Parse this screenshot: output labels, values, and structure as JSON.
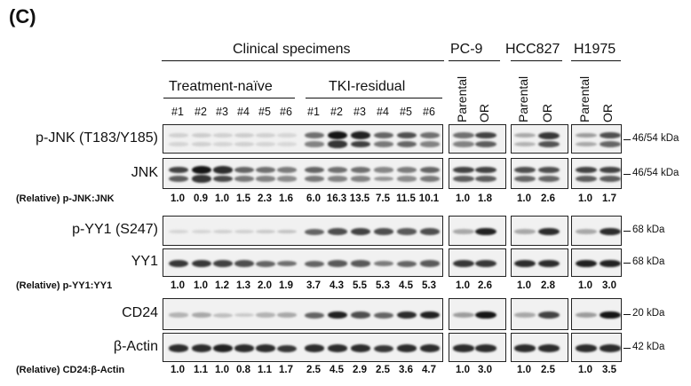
{
  "figure": {
    "panel_label": "(C)"
  },
  "headers": {
    "clinical": "Clinical specimens",
    "treatment_naive": "Treatment-naïve",
    "tki_residual": "TKI-residual",
    "cell_lines": [
      {
        "name": "PC-9",
        "lanes": [
          "Parental",
          "OR"
        ]
      },
      {
        "name": "HCC827",
        "lanes": [
          "Parental",
          "OR"
        ]
      },
      {
        "name": "H1975",
        "lanes": [
          "Parental",
          "OR"
        ]
      }
    ],
    "lane_numbers": [
      "#1",
      "#2",
      "#3",
      "#4",
      "#5",
      "#6",
      "#1",
      "#2",
      "#3",
      "#4",
      "#5",
      "#6"
    ]
  },
  "blots": [
    {
      "label": "p-JNK (T183/Y185)",
      "size": "46/54 kDa",
      "clinical": [
        0.12,
        0.14,
        0.12,
        0.14,
        0.12,
        0.1,
        0.55,
        0.95,
        0.9,
        0.6,
        0.7,
        0.55
      ],
      "cells": [
        0.55,
        0.75,
        0.3,
        0.8,
        0.35,
        0.7
      ]
    },
    {
      "label": "JNK",
      "size": "46/54 kDa",
      "clinical": [
        0.75,
        0.95,
        0.85,
        0.6,
        0.55,
        0.5,
        0.6,
        0.55,
        0.55,
        0.45,
        0.5,
        0.6
      ],
      "cells": [
        0.75,
        0.75,
        0.7,
        0.7,
        0.75,
        0.75
      ]
    },
    {
      "label": "p-YY1 (S247)",
      "size": "68 kDa",
      "clinical": [
        0.1,
        0.1,
        0.12,
        0.12,
        0.15,
        0.18,
        0.6,
        0.7,
        0.75,
        0.7,
        0.65,
        0.7
      ],
      "cells": [
        0.3,
        0.9,
        0.3,
        0.85,
        0.3,
        0.85
      ]
    },
    {
      "label": "YY1",
      "size": "68 kDa",
      "clinical": [
        0.8,
        0.8,
        0.75,
        0.7,
        0.6,
        0.55,
        0.6,
        0.65,
        0.65,
        0.5,
        0.6,
        0.65
      ],
      "cells": [
        0.8,
        0.8,
        0.85,
        0.85,
        0.9,
        0.9
      ]
    },
    {
      "label": "CD24",
      "size": "20 kDa",
      "clinical": [
        0.25,
        0.3,
        0.2,
        0.15,
        0.25,
        0.3,
        0.6,
        0.9,
        0.7,
        0.6,
        0.85,
        0.9
      ],
      "cells": [
        0.35,
        0.95,
        0.3,
        0.75,
        0.35,
        0.95
      ]
    },
    {
      "label": "β-Actin",
      "size": "42 kDa",
      "clinical": [
        0.85,
        0.85,
        0.9,
        0.85,
        0.85,
        0.8,
        0.85,
        0.85,
        0.85,
        0.8,
        0.85,
        0.85
      ],
      "cells": [
        0.85,
        0.85,
        0.85,
        0.85,
        0.85,
        0.85
      ]
    }
  ],
  "ratios": [
    {
      "label": "(Relative) p-JNK:JNK",
      "clinical": [
        "1.0",
        "0.9",
        "1.0",
        "1.5",
        "2.3",
        "1.6",
        "6.0",
        "16.3",
        "13.5",
        "7.5",
        "11.5",
        "10.1"
      ],
      "cells": [
        "1.0",
        "1.8",
        "1.0",
        "2.6",
        "1.0",
        "1.7"
      ]
    },
    {
      "label": "(Relative) p-YY1:YY1",
      "clinical": [
        "1.0",
        "1.0",
        "1.2",
        "1.3",
        "2.0",
        "1.9",
        "3.7",
        "4.3",
        "5.5",
        "5.3",
        "4.5",
        "5.3"
      ],
      "cells": [
        "1.0",
        "2.6",
        "1.0",
        "2.8",
        "1.0",
        "3.0"
      ]
    },
    {
      "label": "(Relative) CD24:β-Actin",
      "clinical": [
        "1.0",
        "1.1",
        "1.0",
        "0.8",
        "1.1",
        "1.7",
        "2.5",
        "4.5",
        "2.9",
        "2.5",
        "3.6",
        "4.7"
      ],
      "cells": [
        "1.0",
        "3.0",
        "1.0",
        "2.5",
        "1.0",
        "3.5"
      ]
    }
  ]
}
